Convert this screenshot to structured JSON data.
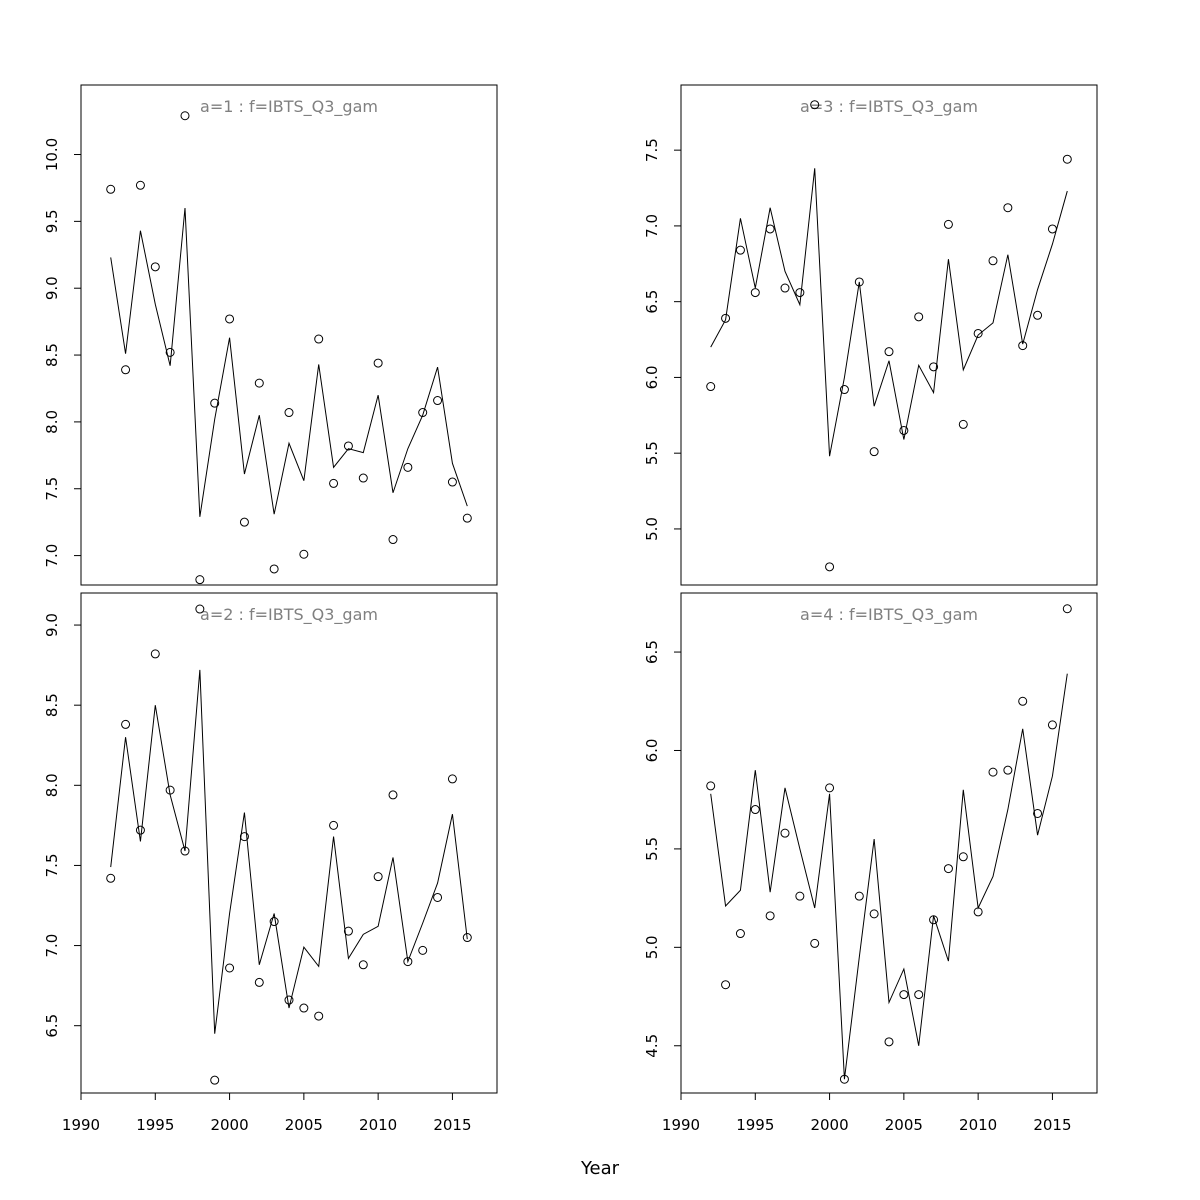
{
  "figure": {
    "xlabel": "Year",
    "colors": {
      "axis": "#000000",
      "panel_title": "#808080",
      "line": "#000000",
      "point": "#000000"
    }
  },
  "chart_data": [
    {
      "type": "line",
      "title": "a=1  :  f=IBTS_Q3_gam",
      "xlabel": "Year",
      "ylabel": "",
      "xlim": [
        1990,
        2018
      ],
      "ylim": [
        6.78,
        10.52
      ],
      "x_ticks": [
        1990,
        1995,
        2000,
        2005,
        2010,
        2015
      ],
      "x_tick_labels": [
        "1990",
        "1995",
        "2000",
        "2005",
        "2010",
        "2015"
      ],
      "y_ticks": [
        7.0,
        7.5,
        8.0,
        8.5,
        9.0,
        9.5,
        10.0
      ],
      "y_tick_labels": [
        "7.0",
        "7.5",
        "8.0",
        "8.5",
        "9.0",
        "9.5",
        "10.0"
      ],
      "x": [
        1992,
        1993,
        1994,
        1995,
        1996,
        1997,
        1998,
        1999,
        2000,
        2001,
        2002,
        2003,
        2004,
        2005,
        2006,
        2007,
        2008,
        2009,
        2010,
        2011,
        2012,
        2013,
        2014,
        2015,
        2016
      ],
      "series": [
        {
          "style": "points",
          "values": [
            9.74,
            8.39,
            9.77,
            9.16,
            8.52,
            10.29,
            6.82,
            8.14,
            8.77,
            7.25,
            8.29,
            6.9,
            8.07,
            7.01,
            8.62,
            7.54,
            7.82,
            7.58,
            8.44,
            7.12,
            7.66,
            8.07,
            8.16,
            7.55,
            7.28
          ]
        },
        {
          "style": "line",
          "values": [
            9.23,
            8.51,
            9.43,
            8.88,
            8.42,
            9.6,
            7.29,
            8.02,
            8.63,
            7.61,
            8.05,
            7.31,
            7.84,
            7.56,
            8.43,
            7.66,
            7.8,
            7.77,
            8.2,
            7.47,
            7.8,
            8.05,
            8.41,
            7.69,
            7.37
          ]
        }
      ]
    },
    {
      "type": "line",
      "title": "a=3  :  f=IBTS_Q3_gam",
      "xlabel": "Year",
      "ylabel": "",
      "xlim": [
        1990,
        2018
      ],
      "ylim": [
        4.63,
        7.93
      ],
      "x_ticks": [
        1990,
        1995,
        2000,
        2005,
        2010,
        2015
      ],
      "x_tick_labels": [
        "1990",
        "1995",
        "2000",
        "2005",
        "2010",
        "2015"
      ],
      "y_ticks": [
        5.0,
        5.5,
        6.0,
        6.5,
        7.0,
        7.5
      ],
      "y_tick_labels": [
        "5.0",
        "5.5",
        "6.0",
        "6.5",
        "7.0",
        "7.5"
      ],
      "x": [
        1992,
        1993,
        1994,
        1995,
        1996,
        1997,
        1998,
        1999,
        2000,
        2001,
        2002,
        2003,
        2004,
        2005,
        2006,
        2007,
        2008,
        2009,
        2010,
        2011,
        2012,
        2013,
        2014,
        2015,
        2016
      ],
      "series": [
        {
          "style": "points",
          "values": [
            5.94,
            6.39,
            6.84,
            6.56,
            6.98,
            6.59,
            6.56,
            7.8,
            4.75,
            5.92,
            6.63,
            5.51,
            6.17,
            5.65,
            6.4,
            6.07,
            7.01,
            5.69,
            6.29,
            6.77,
            7.12,
            6.21,
            6.41,
            6.98,
            7.44
          ]
        },
        {
          "style": "line",
          "values": [
            6.2,
            6.38,
            7.05,
            6.59,
            7.12,
            6.7,
            6.48,
            7.38,
            5.48,
            6.0,
            6.63,
            5.81,
            6.11,
            5.59,
            6.08,
            5.9,
            6.78,
            6.05,
            6.28,
            6.36,
            6.81,
            6.22,
            6.58,
            6.88,
            7.23
          ]
        }
      ]
    },
    {
      "type": "line",
      "title": "a=2  :  f=IBTS_Q3_gam",
      "xlabel": "Year",
      "ylabel": "",
      "xlim": [
        1990,
        2018
      ],
      "ylim": [
        6.08,
        9.2
      ],
      "x_ticks": [
        1990,
        1995,
        2000,
        2005,
        2010,
        2015
      ],
      "x_tick_labels": [
        "1990",
        "1995",
        "2000",
        "2005",
        "2010",
        "2015"
      ],
      "y_ticks": [
        6.5,
        7.0,
        7.5,
        8.0,
        8.5,
        9.0
      ],
      "y_tick_labels": [
        "6.5",
        "7.0",
        "7.5",
        "8.0",
        "8.5",
        "9.0"
      ],
      "x": [
        1992,
        1993,
        1994,
        1995,
        1996,
        1997,
        1998,
        1999,
        2000,
        2001,
        2002,
        2003,
        2004,
        2005,
        2006,
        2007,
        2008,
        2009,
        2010,
        2011,
        2012,
        2013,
        2014,
        2015,
        2016
      ],
      "series": [
        {
          "style": "points",
          "values": [
            7.42,
            8.38,
            7.72,
            8.82,
            7.97,
            7.59,
            9.1,
            6.16,
            6.86,
            7.68,
            6.77,
            7.15,
            6.66,
            6.61,
            6.56,
            7.75,
            7.09,
            6.88,
            7.43,
            7.94,
            6.9,
            6.97,
            7.3,
            8.04,
            7.05
          ]
        },
        {
          "style": "line",
          "values": [
            7.49,
            8.3,
            7.65,
            8.5,
            7.94,
            7.59,
            8.72,
            6.45,
            7.2,
            7.83,
            6.88,
            7.2,
            6.61,
            6.99,
            6.87,
            7.68,
            6.92,
            7.07,
            7.12,
            7.55,
            6.9,
            7.14,
            7.39,
            7.82,
            7.04
          ]
        }
      ]
    },
    {
      "type": "line",
      "title": "a=4  :  f=IBTS_Q3_gam",
      "xlabel": "Year",
      "ylabel": "",
      "xlim": [
        1990,
        2018
      ],
      "ylim": [
        4.26,
        6.8
      ],
      "x_ticks": [
        1990,
        1995,
        2000,
        2005,
        2010,
        2015
      ],
      "x_tick_labels": [
        "1990",
        "1995",
        "2000",
        "2005",
        "2010",
        "2015"
      ],
      "y_ticks": [
        4.5,
        5.0,
        5.5,
        6.0,
        6.5
      ],
      "y_tick_labels": [
        "4.5",
        "5.0",
        "5.5",
        "6.0",
        "6.5"
      ],
      "x": [
        1992,
        1993,
        1994,
        1995,
        1996,
        1997,
        1998,
        1999,
        2000,
        2001,
        2002,
        2003,
        2004,
        2005,
        2006,
        2007,
        2008,
        2009,
        2010,
        2011,
        2012,
        2013,
        2014,
        2015,
        2016
      ],
      "series": [
        {
          "style": "points",
          "values": [
            5.82,
            4.81,
            5.07,
            5.7,
            5.16,
            5.58,
            5.26,
            5.02,
            5.81,
            4.33,
            5.26,
            5.17,
            4.52,
            4.76,
            4.76,
            5.14,
            5.4,
            5.46,
            5.18,
            5.89,
            5.9,
            6.25,
            5.68,
            6.13,
            6.72
          ]
        },
        {
          "style": "line",
          "values": [
            5.78,
            5.21,
            5.29,
            5.9,
            5.28,
            5.81,
            5.5,
            5.2,
            5.78,
            4.33,
            4.95,
            5.55,
            4.72,
            4.89,
            4.5,
            5.16,
            4.93,
            5.8,
            5.2,
            5.36,
            5.7,
            6.11,
            5.57,
            5.87,
            6.39
          ]
        }
      ]
    }
  ]
}
